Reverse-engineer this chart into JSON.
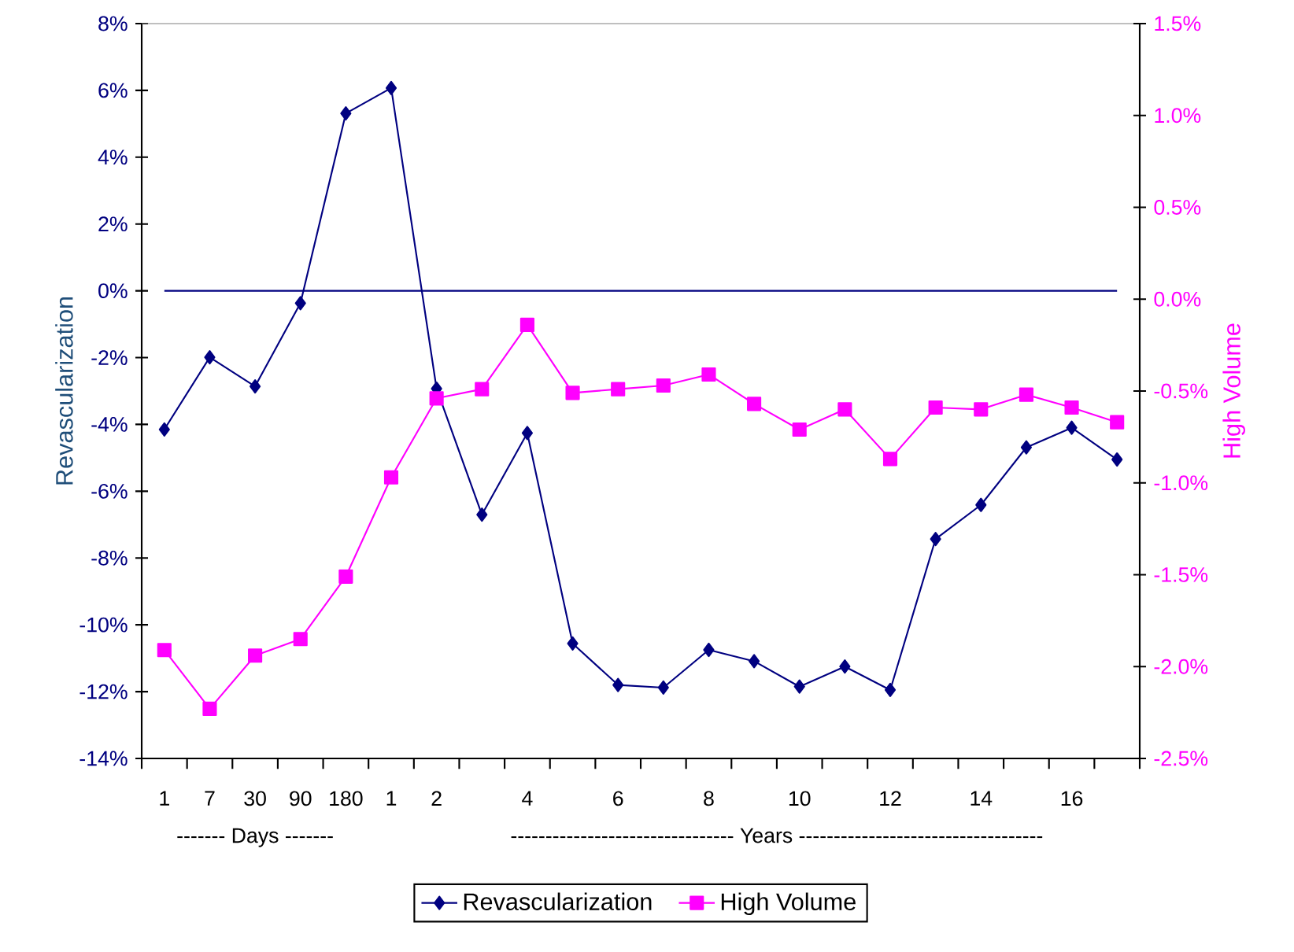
{
  "chart_data": {
    "type": "line",
    "categories": [
      "1",
      "7",
      "30",
      "90",
      "180",
      "1",
      "2",
      null,
      "4",
      null,
      "6",
      null,
      "8",
      null,
      "10",
      null,
      "12",
      null,
      "14",
      null,
      "16",
      null
    ],
    "series": [
      {
        "name": "Revascularization",
        "color": "#000080",
        "marker": "diamond",
        "values": [
          -4.15,
          -1.99,
          -2.86,
          -0.37,
          5.31,
          6.07,
          -2.93,
          -6.7,
          -4.26,
          -10.56,
          -11.8,
          -11.88,
          -10.75,
          -11.09,
          -11.85,
          -11.25,
          -11.95,
          -7.43,
          -6.41,
          -4.69,
          -4.1,
          -5.05
        ]
      },
      {
        "name": "High Volume",
        "color": "#ff00ff",
        "marker": "square",
        "axis": "y2",
        "values": [
          -1.91,
          -2.23,
          -1.94,
          -1.85,
          -1.51,
          -0.97,
          -0.54,
          -0.49,
          -0.14,
          -0.51,
          -0.49,
          -0.47,
          -0.41,
          -0.57,
          -0.71,
          -0.6,
          -0.87,
          -0.59,
          -0.6,
          -0.52,
          -0.59,
          -0.67
        ]
      }
    ],
    "ylabel": "Revascularization",
    "y2label": "High Volume",
    "ylim": [
      -14,
      8
    ],
    "yticks": [
      {
        "value": -14,
        "label": "-14%"
      },
      {
        "value": -12,
        "label": "-12%"
      },
      {
        "value": -10,
        "label": "-10%"
      },
      {
        "value": -8,
        "label": "-8%"
      },
      {
        "value": -6,
        "label": "-6%"
      },
      {
        "value": -4,
        "label": "-4%"
      },
      {
        "value": -2,
        "label": "-2%"
      },
      {
        "value": 0,
        "label": "0%"
      },
      {
        "value": 2,
        "label": "2%"
      },
      {
        "value": 4,
        "label": "4%"
      },
      {
        "value": 6,
        "label": "6%"
      },
      {
        "value": 8,
        "label": "8%"
      }
    ],
    "y2lim": [
      -2.5,
      1.5
    ],
    "y2ticks": [
      {
        "value": -2.5,
        "label": "-2.5%"
      },
      {
        "value": -2.0,
        "label": "-2.0%"
      },
      {
        "value": -1.5,
        "label": "-1.5%"
      },
      {
        "value": -1.0,
        "label": "-1.0%"
      },
      {
        "value": -0.5,
        "label": "-0.5%"
      },
      {
        "value": 0,
        "label": "0.0%"
      },
      {
        "value": 0.5,
        "label": "0.5%"
      },
      {
        "value": 1.0,
        "label": "1.0%"
      },
      {
        "value": 1.5,
        "label": "1.5%"
      }
    ],
    "ref_lines": [
      {
        "axis": "y",
        "value": 0,
        "color": "#000080"
      }
    ],
    "annotations": [
      "------- Days -------",
      "-------------------------------- Years -----------------------------------"
    ],
    "legend": "bottom",
    "grid": false,
    "line_style": "solid"
  }
}
